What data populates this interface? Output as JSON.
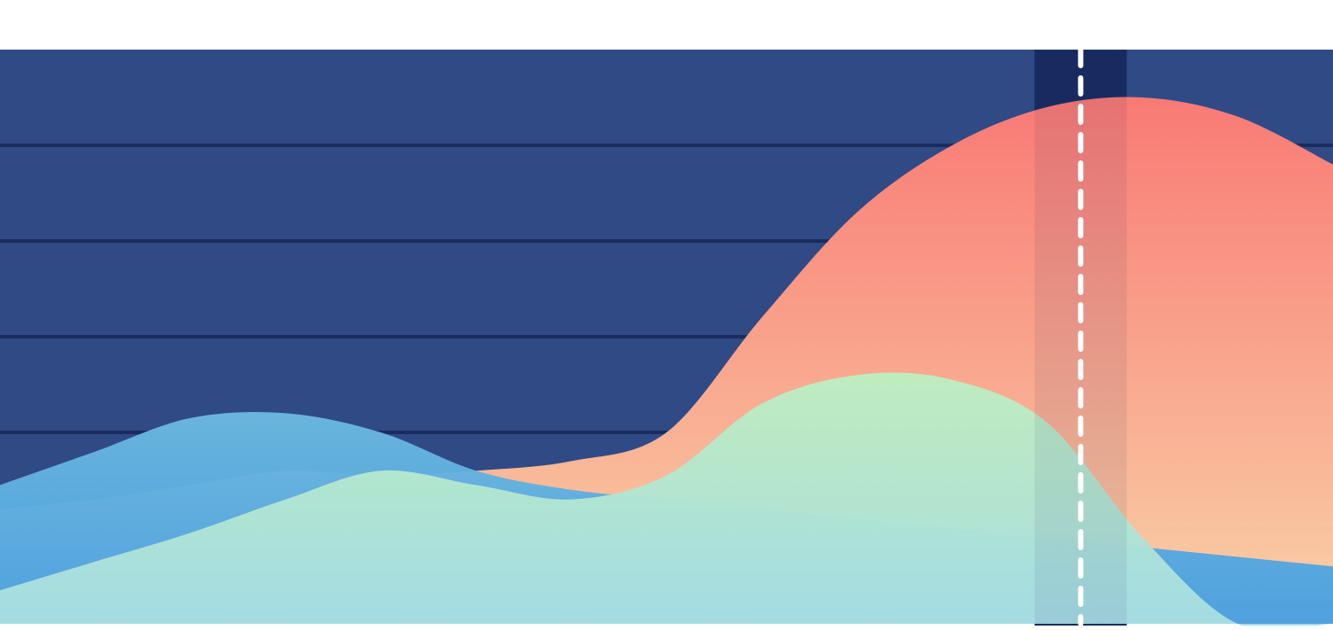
{
  "chart_data": {
    "type": "area",
    "title": "",
    "xlabel": "",
    "ylabel": "",
    "x": [
      0,
      1,
      2,
      3,
      4,
      5,
      6,
      7,
      8,
      9,
      10,
      11,
      12,
      13,
      14
    ],
    "xlim": [
      0,
      14
    ],
    "ylim": [
      0,
      6
    ],
    "grid": true,
    "legend": "none",
    "highlight_x": 11.35,
    "series": [
      {
        "color_top": "#ff7b74",
        "color_bottom": "#ffd6a8",
        "values": [
          1.2,
          1.3,
          1.45,
          1.6,
          1.55,
          1.6,
          1.7,
          2.0,
          3.2,
          4.3,
          5.0,
          5.4,
          5.5,
          5.3,
          4.8
        ]
      },
      {
        "color_top": "#6bb8e0",
        "color_bottom": "#4a9fe0",
        "values": [
          1.45,
          1.8,
          2.15,
          2.2,
          2.0,
          1.6,
          1.4,
          1.3,
          1.2,
          1.1,
          1.0,
          0.9,
          0.8,
          0.7,
          0.6
        ]
      },
      {
        "color_top": "#bdeec0",
        "color_bottom": "#a6dde4",
        "values": [
          0.35,
          0.65,
          0.95,
          1.3,
          1.6,
          1.45,
          1.3,
          1.55,
          2.3,
          2.6,
          2.55,
          2.1,
          0.9,
          0.0,
          0.0
        ]
      }
    ]
  },
  "colors": {
    "background": "#2f4a85",
    "gridline": "#1a2c5e",
    "highlight_band": "#172c61",
    "highlight_line": "#ffffff"
  }
}
